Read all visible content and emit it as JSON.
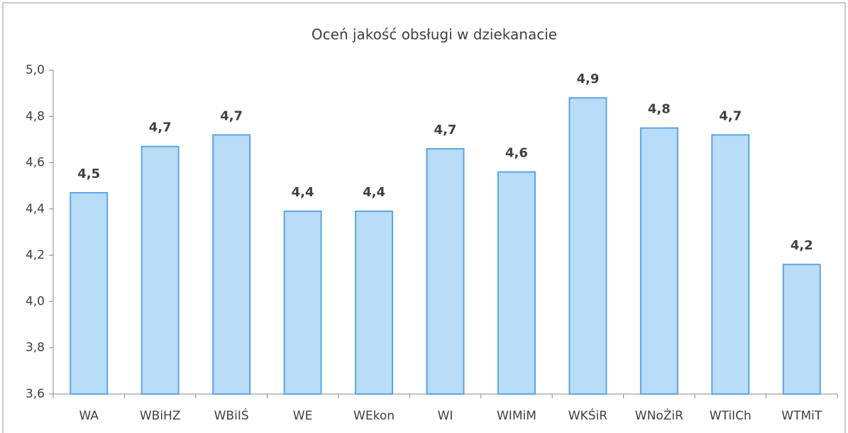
{
  "chart_data": {
    "type": "bar",
    "title": "Oceń jakość obsługi w dziekanacie",
    "categories": [
      "WA",
      "WBiHZ",
      "WBiIŚ",
      "WE",
      "WEkon",
      "WI",
      "WIMiM",
      "WKŚiR",
      "WNoŻiR",
      "WTiICh",
      "WTMiT"
    ],
    "values": [
      4.47,
      4.67,
      4.72,
      4.39,
      4.39,
      4.66,
      4.56,
      4.88,
      4.75,
      4.72,
      4.16
    ],
    "value_labels": [
      "4,5",
      "4,7",
      "4,7",
      "4,4",
      "4,4",
      "4,7",
      "4,6",
      "4,9",
      "4,8",
      "4,7",
      "4,2"
    ],
    "color": "#b9dcf8",
    "edge_color": "#5aa6e6",
    "ylim": [
      3.6,
      5.0
    ],
    "yticks": [
      {
        "value": 3.6,
        "label": "3,6"
      },
      {
        "value": 3.8,
        "label": "3,8"
      },
      {
        "value": 4.0,
        "label": "4,0"
      },
      {
        "value": 4.2,
        "label": "4,2"
      },
      {
        "value": 4.4,
        "label": "4,4"
      },
      {
        "value": 4.6,
        "label": "4,6"
      },
      {
        "value": 4.8,
        "label": "4,8"
      },
      {
        "value": 5.0,
        "label": "5,0"
      }
    ],
    "grid": false
  }
}
